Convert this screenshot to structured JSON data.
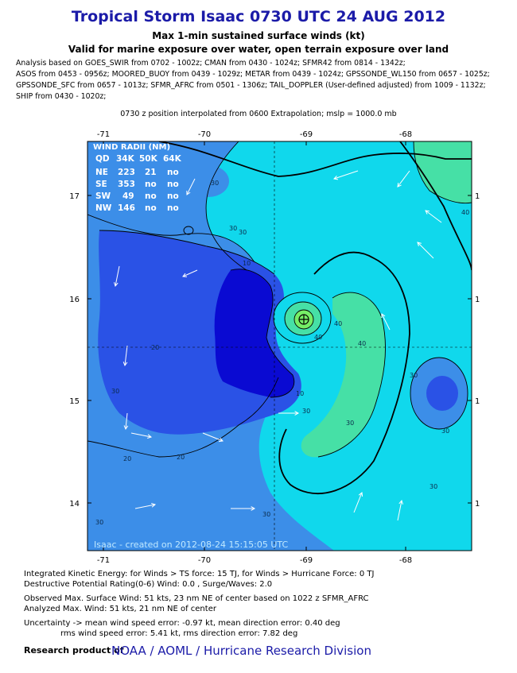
{
  "header": {
    "title": "Tropical Storm Isaac 0730 UTC 24 AUG 2012",
    "subtitle1": "Max 1-min sustained surface winds (kt)",
    "subtitle2": "Valid for marine exposure over water, open terrain exposure over land",
    "analysis_lines": [
      "Analysis based on GOES_SWIR from 0702 - 1002z; CMAN from 0430 - 1024z; SFMR42 from 0814 - 1342z;",
      "ASOS from 0453 - 0956z; MOORED_BUOY from 0439 - 1029z; METAR from 0439 - 1024z; GPSSONDE_WL150 from 0657 - 1025z;",
      "GPSSONDE_SFC from 0657 - 1013z; SFMR_AFRC from 0501 - 1306z; TAIL_DOPPLER (User-defined adjusted) from 1009 - 1132z;",
      "SHIP from 0430 - 1020z;"
    ],
    "position_note": "0730 z position interpolated from 0600 Extrapolation; mslp = 1000.0 mb"
  },
  "map": {
    "lon_ticks": [
      "-71",
      "-70",
      "-69",
      "-68"
    ],
    "lat_ticks": [
      "17",
      "16",
      "15",
      "14"
    ],
    "right_tick_label": "1",
    "contour_labels": [
      "30",
      "30",
      "20",
      "30",
      "10",
      "40",
      "40",
      "30",
      "40",
      "30",
      "10",
      "20",
      "30",
      "30",
      "20",
      "30",
      "30",
      "30",
      "40",
      "30"
    ],
    "storm_center_lon": -68.98,
    "storm_center_lat": 15.83,
    "credit": "Isaac - created on 2012-08-24 15:15:05 UTC",
    "colors": {
      "level_0_10": "#0a0ad2",
      "level_10_20": "#2a52e6",
      "level_20_30": "#3c8ee8",
      "level_30_40": "#10d8ec",
      "level_40_50": "#46e0a6",
      "level_50_plus": "#76ee66",
      "contour_line": "#000000",
      "arrow": "#ffffff"
    }
  },
  "wind_radii": {
    "title": "WIND RADII (NM)",
    "columns": [
      "QD",
      "34K",
      "50K",
      "64K"
    ],
    "rows": [
      [
        "NE",
        "223",
        "21",
        "no"
      ],
      [
        "SE",
        "353",
        "no",
        "no"
      ],
      [
        "SW",
        "49",
        "no",
        "no"
      ],
      [
        "NW",
        "146",
        "no",
        "no"
      ]
    ]
  },
  "footer": {
    "ike": "Integrated Kinetic Energy: for Winds > TS force: 15 TJ, for Winds > Hurricane Force: 0 TJ",
    "dpr": "Destructive Potential Rating(0-6)   Wind: 0.0 , Surge/Waves: 2.0",
    "obs_max": "Observed Max. Surface Wind: 51 kts, 23 nm NE of center based on 1022 z SFMR_AFRC",
    "ana_max": "Analyzed Max. Wind: 51 kts, 21 nm  NE of center",
    "uncert1": "Uncertainty -> mean wind speed error:  -0.97 kt, mean direction error: 0.40 deg",
    "uncert2": "rms wind speed error: 5.41 kt, rms direction error: 7.82 deg",
    "research_label": "Research product of",
    "org": "NOAA  /  AOML  /  Hurricane Research Division"
  }
}
